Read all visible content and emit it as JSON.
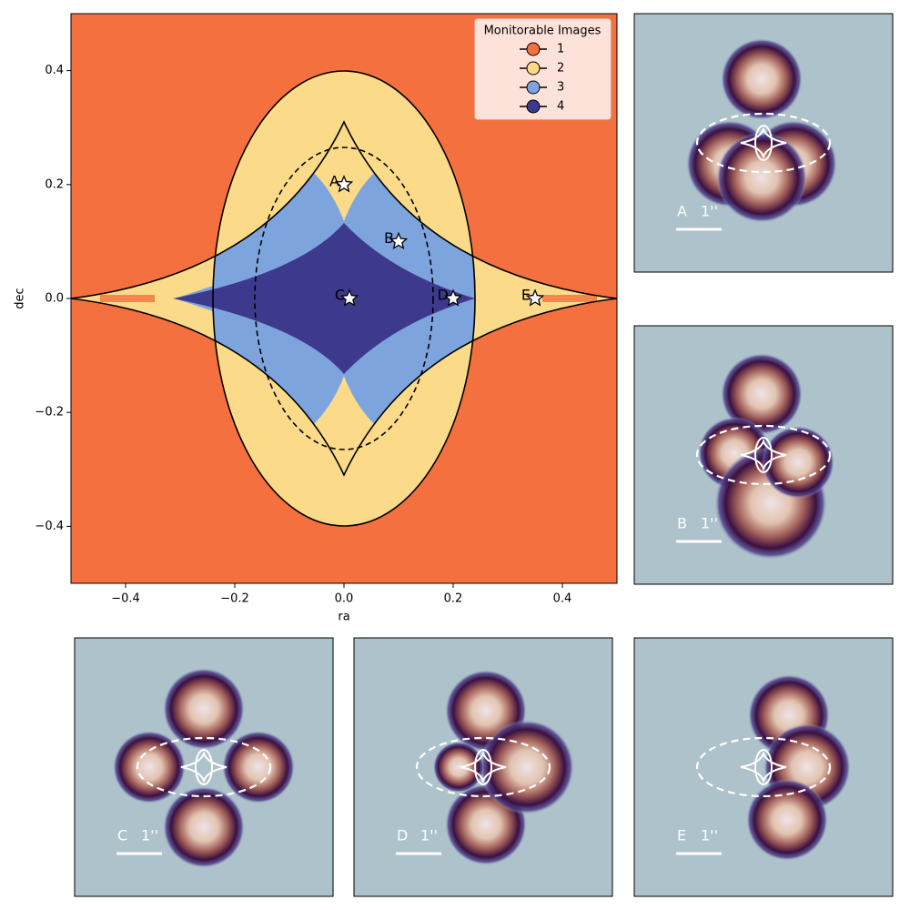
{
  "chart_data": {
    "type": "scatter",
    "xlabel": "ra",
    "ylabel": "dec",
    "xlim": [
      -0.5,
      0.5
    ],
    "ylim": [
      -0.5,
      0.5
    ],
    "xticks": [
      {
        "value": -0.4,
        "label": "−0.4"
      },
      {
        "value": -0.2,
        "label": "−0.2"
      },
      {
        "value": 0,
        "label": "0.0"
      },
      0.2,
      0.4
    ],
    "yticks": [
      {
        "value": -0.4,
        "label": "−0.4"
      },
      {
        "value": -0.2,
        "label": "−0.2"
      },
      {
        "value": 0,
        "label": "0.0"
      },
      0.2,
      0.4
    ],
    "legend": {
      "title": "Monitorable Images",
      "entries": [
        {
          "name": "1",
          "color": "#f4703f"
        },
        {
          "name": "2",
          "color": "#fbdb89"
        },
        {
          "name": "3",
          "color": "#7ea4de"
        },
        {
          "name": "4",
          "color": "#3d3a8d"
        }
      ]
    },
    "point_labels": [
      "A",
      "B",
      "C",
      "D",
      "E"
    ],
    "x": [
      0.0,
      0.1,
      0.01,
      0.2,
      0.35
    ],
    "values": [
      0.2,
      0.1,
      0,
      0,
      0
    ]
  },
  "panels": [
    {
      "label": "A",
      "scale": "1''"
    },
    {
      "label": "B",
      "scale": "1''"
    },
    {
      "label": "C",
      "scale": "1''"
    },
    {
      "label": "D",
      "scale": "1''"
    },
    {
      "label": "E",
      "scale": "1''"
    }
  ]
}
